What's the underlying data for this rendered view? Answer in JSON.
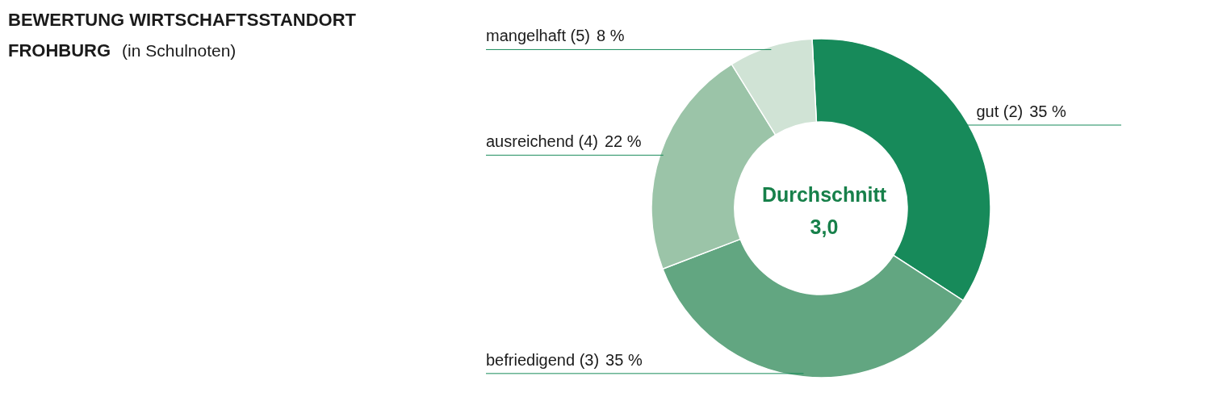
{
  "chart_data": {
    "type": "donut",
    "title": "BEWERTUNG WIRTSCHAFTSSTANDORT FROHBURG",
    "subtitle": "(in Schulnoten)",
    "categories": [
      "gut (2)",
      "befriedigend (3)",
      "ausreichend (4)",
      "mangelhaft (5)"
    ],
    "values": [
      35,
      35,
      22,
      8
    ],
    "colors": [
      "#178a5a",
      "#62a681",
      "#9bc4a8",
      "#d0e3d5"
    ],
    "value_labels": [
      "35 %",
      "35 %",
      "22 %",
      "8 %"
    ],
    "annotations": [
      "Durchschnitt 3,0"
    ]
  }
}
